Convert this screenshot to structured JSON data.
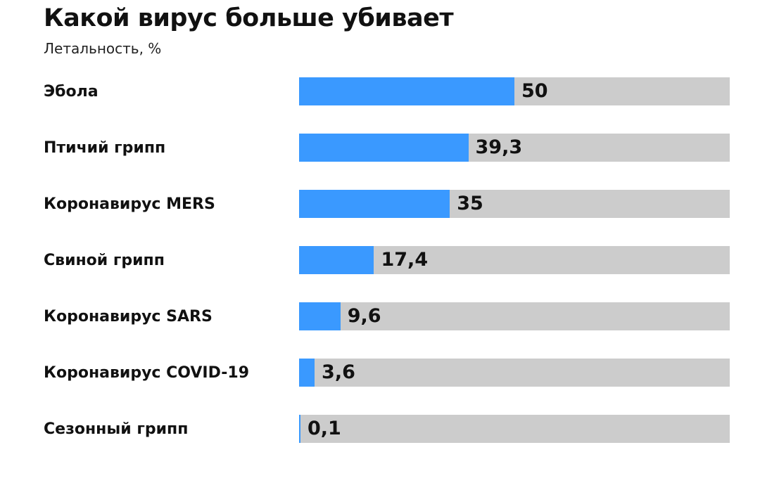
{
  "chart_data": {
    "type": "bar",
    "orientation": "horizontal",
    "title": "Какой вирус больше убивает",
    "subtitle": "Летальность, %",
    "categories": [
      "Эбола",
      "Птичий грипп",
      "Коронавирус MERS",
      "Свиной грипп",
      "Коронавирус SARS",
      "Коронавирус COVID-19",
      "Сезонный грипп"
    ],
    "values": [
      50,
      39.3,
      35,
      17.4,
      9.6,
      3.6,
      0.1
    ],
    "value_labels": [
      "50",
      "39,3",
      "35",
      "17,4",
      "9,6",
      "3,6",
      "0,1"
    ],
    "xlim": [
      0,
      100
    ],
    "grid": false,
    "colors": {
      "bar": "#3a99ff",
      "track": "#cccccc"
    }
  }
}
